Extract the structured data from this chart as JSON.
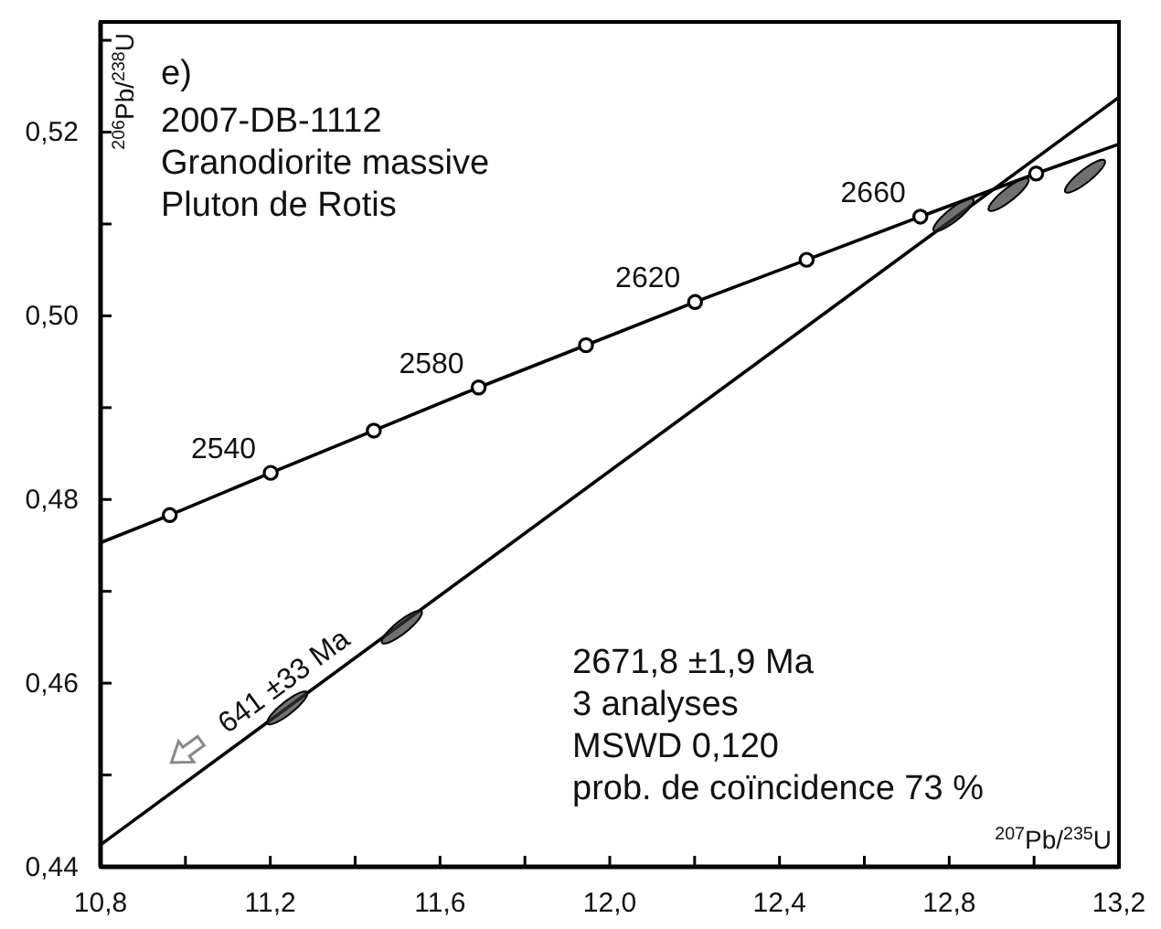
{
  "chart_data": {
    "type": "line",
    "title": "e)",
    "xlabel": "$^{207}$Pb/$^{235}$U",
    "ylabel": "$^{206}$Pb/$^{238}$U",
    "xlim": [
      10.8,
      13.2
    ],
    "ylim": [
      0.44,
      0.532
    ],
    "xticks": [
      {
        "value": 10.8,
        "label": "10,8"
      },
      {
        "value": 11.0,
        "label": null
      },
      {
        "value": 11.2,
        "label": "11,2"
      },
      {
        "value": 11.4,
        "label": null
      },
      {
        "value": 11.6,
        "label": "11,6"
      },
      {
        "value": 11.8,
        "label": null
      },
      {
        "value": 12.0,
        "label": "12,0"
      },
      {
        "value": 12.2,
        "label": null
      },
      {
        "value": 12.4,
        "label": "12,4"
      },
      {
        "value": 12.6,
        "label": null
      },
      {
        "value": 12.8,
        "label": "12,8"
      },
      {
        "value": 13.0,
        "label": null
      },
      {
        "value": 13.2,
        "label": "13,2"
      }
    ],
    "yticks": [
      {
        "value": 0.44,
        "label": "0,44"
      },
      {
        "value": 0.45,
        "label": null
      },
      {
        "value": 0.46,
        "label": "0,46"
      },
      {
        "value": 0.47,
        "label": null
      },
      {
        "value": 0.48,
        "label": "0,48"
      },
      {
        "value": 0.49,
        "label": null
      },
      {
        "value": 0.5,
        "label": "0,50"
      },
      {
        "value": 0.51,
        "label": null
      },
      {
        "value": 0.52,
        "label": "0,52"
      },
      {
        "value": 0.53,
        "label": null
      }
    ],
    "series": [
      {
        "color": "#000000",
        "x": [
          10.8,
          10.963,
          11.201,
          11.444,
          11.691,
          11.944,
          12.201,
          12.464,
          12.732,
          13.005,
          13.2
        ],
        "values": [
          0.4753,
          0.4783,
          0.4829,
          0.4875,
          0.4922,
          0.4968,
          0.5015,
          0.5061,
          0.5108,
          0.5155,
          0.5187
        ]
      },
      {
        "type": "scatter",
        "marker": "circle",
        "color": "#000000",
        "x": [
          10.963,
          11.201,
          11.444,
          11.691,
          11.944,
          12.201,
          12.464,
          12.732,
          13.005
        ],
        "values": [
          0.4783,
          0.4829,
          0.4875,
          0.4922,
          0.4968,
          0.5015,
          0.5061,
          0.5108,
          0.5155
        ]
      },
      {
        "color": "#000000",
        "x": [
          10.8,
          13.2
        ],
        "values": [
          0.4424,
          0.5238
        ]
      },
      {
        "type": "scatter",
        "color": "#333333",
        "x": [
          11.24,
          11.51,
          12.81,
          12.94,
          13.12
        ],
        "values": [
          0.4573,
          0.4661,
          0.511,
          0.5132,
          0.5152
        ]
      }
    ],
    "annotations": [
      "2007-DB-1112",
      "Granodiorite massive",
      "Pluton de Rotis",
      "2671,8 ±1,9 Ma",
      "3 analyses",
      "MSWD 0,120",
      "prob. de coïncidence 73 %",
      {
        "text": "2540",
        "x": 11.201,
        "y": 0.4829
      },
      {
        "text": "2580",
        "x": 11.691,
        "y": 0.4922
      },
      {
        "text": "2620",
        "x": 12.201,
        "y": 0.5015
      },
      {
        "text": "2660",
        "x": 12.732,
        "y": 0.5108
      },
      "641 ±33 Ma"
    ]
  }
}
